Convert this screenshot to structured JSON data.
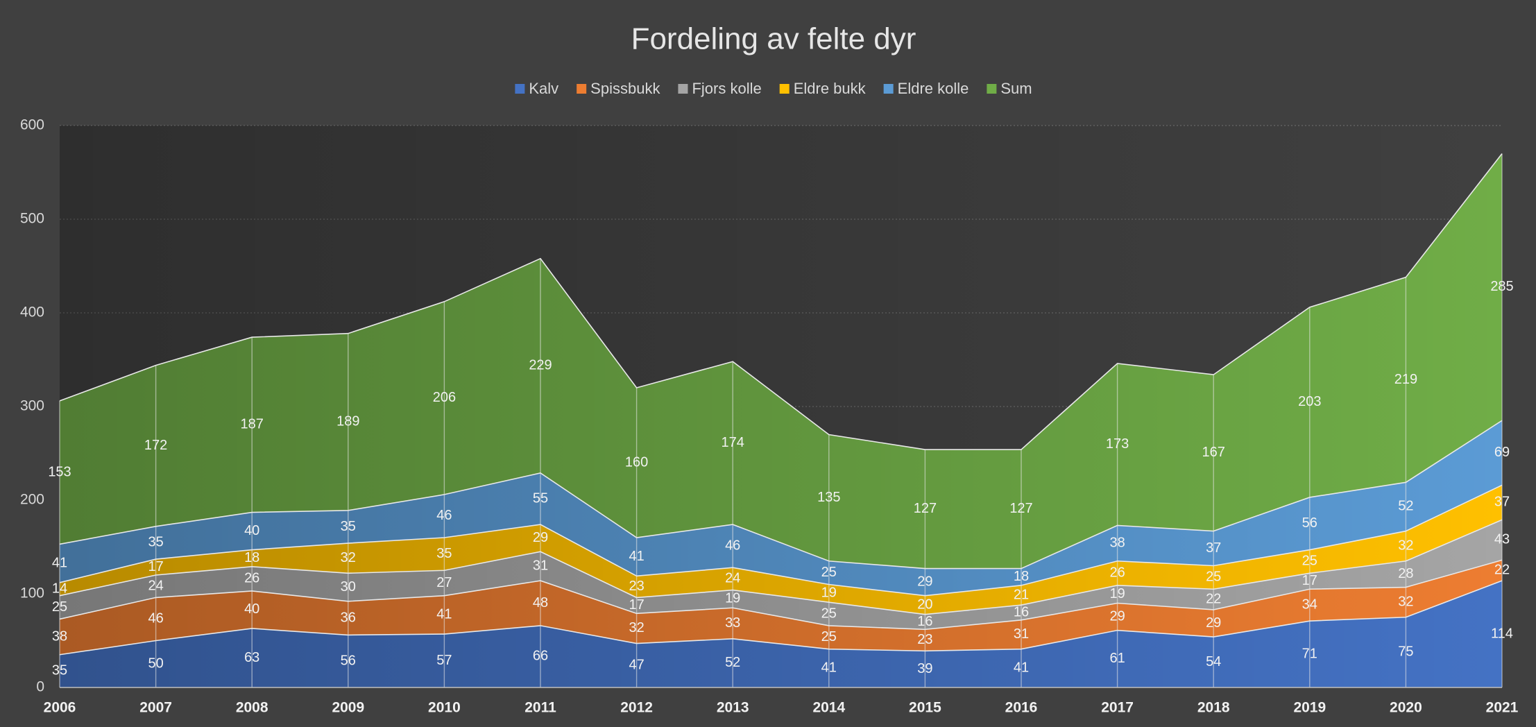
{
  "chart_data": {
    "type": "stacked_area",
    "title": "Fordeling av felte dyr",
    "categories": [
      "2006",
      "2007",
      "2008",
      "2009",
      "2010",
      "2011",
      "2012",
      "2013",
      "2014",
      "2015",
      "2016",
      "2017",
      "2018",
      "2019",
      "2020",
      "2021"
    ],
    "series": [
      {
        "name": "Kalv",
        "color": "#4472c4",
        "values": [
          35,
          50,
          63,
          56,
          57,
          66,
          47,
          52,
          41,
          39,
          41,
          61,
          54,
          71,
          75,
          114
        ]
      },
      {
        "name": "Spissbukk",
        "color": "#ed7d31",
        "values": [
          38,
          46,
          40,
          36,
          41,
          48,
          32,
          33,
          25,
          23,
          31,
          29,
          29,
          34,
          32,
          22
        ]
      },
      {
        "name": "Fjors kolle",
        "color": "#a5a5a5",
        "values": [
          25,
          24,
          26,
          30,
          27,
          31,
          17,
          19,
          25,
          16,
          16,
          19,
          22,
          17,
          28,
          43
        ]
      },
      {
        "name": "Eldre bukk",
        "color": "#ffc000",
        "values": [
          14,
          17,
          18,
          32,
          35,
          29,
          23,
          24,
          19,
          20,
          21,
          26,
          25,
          25,
          32,
          37
        ]
      },
      {
        "name": "Eldre kolle",
        "color": "#5b9bd5",
        "values": [
          41,
          35,
          40,
          35,
          46,
          55,
          41,
          46,
          25,
          29,
          18,
          38,
          37,
          56,
          52,
          69
        ]
      },
      {
        "name": "Sum",
        "color": "#70ad47",
        "values": [
          153,
          172,
          187,
          189,
          206,
          229,
          160,
          174,
          135,
          127,
          127,
          173,
          167,
          203,
          219,
          285
        ]
      }
    ],
    "ylim": [
      0,
      600
    ],
    "yticks": [
      0,
      100,
      200,
      300,
      400,
      500,
      600
    ],
    "grid": true,
    "legend": "top"
  }
}
